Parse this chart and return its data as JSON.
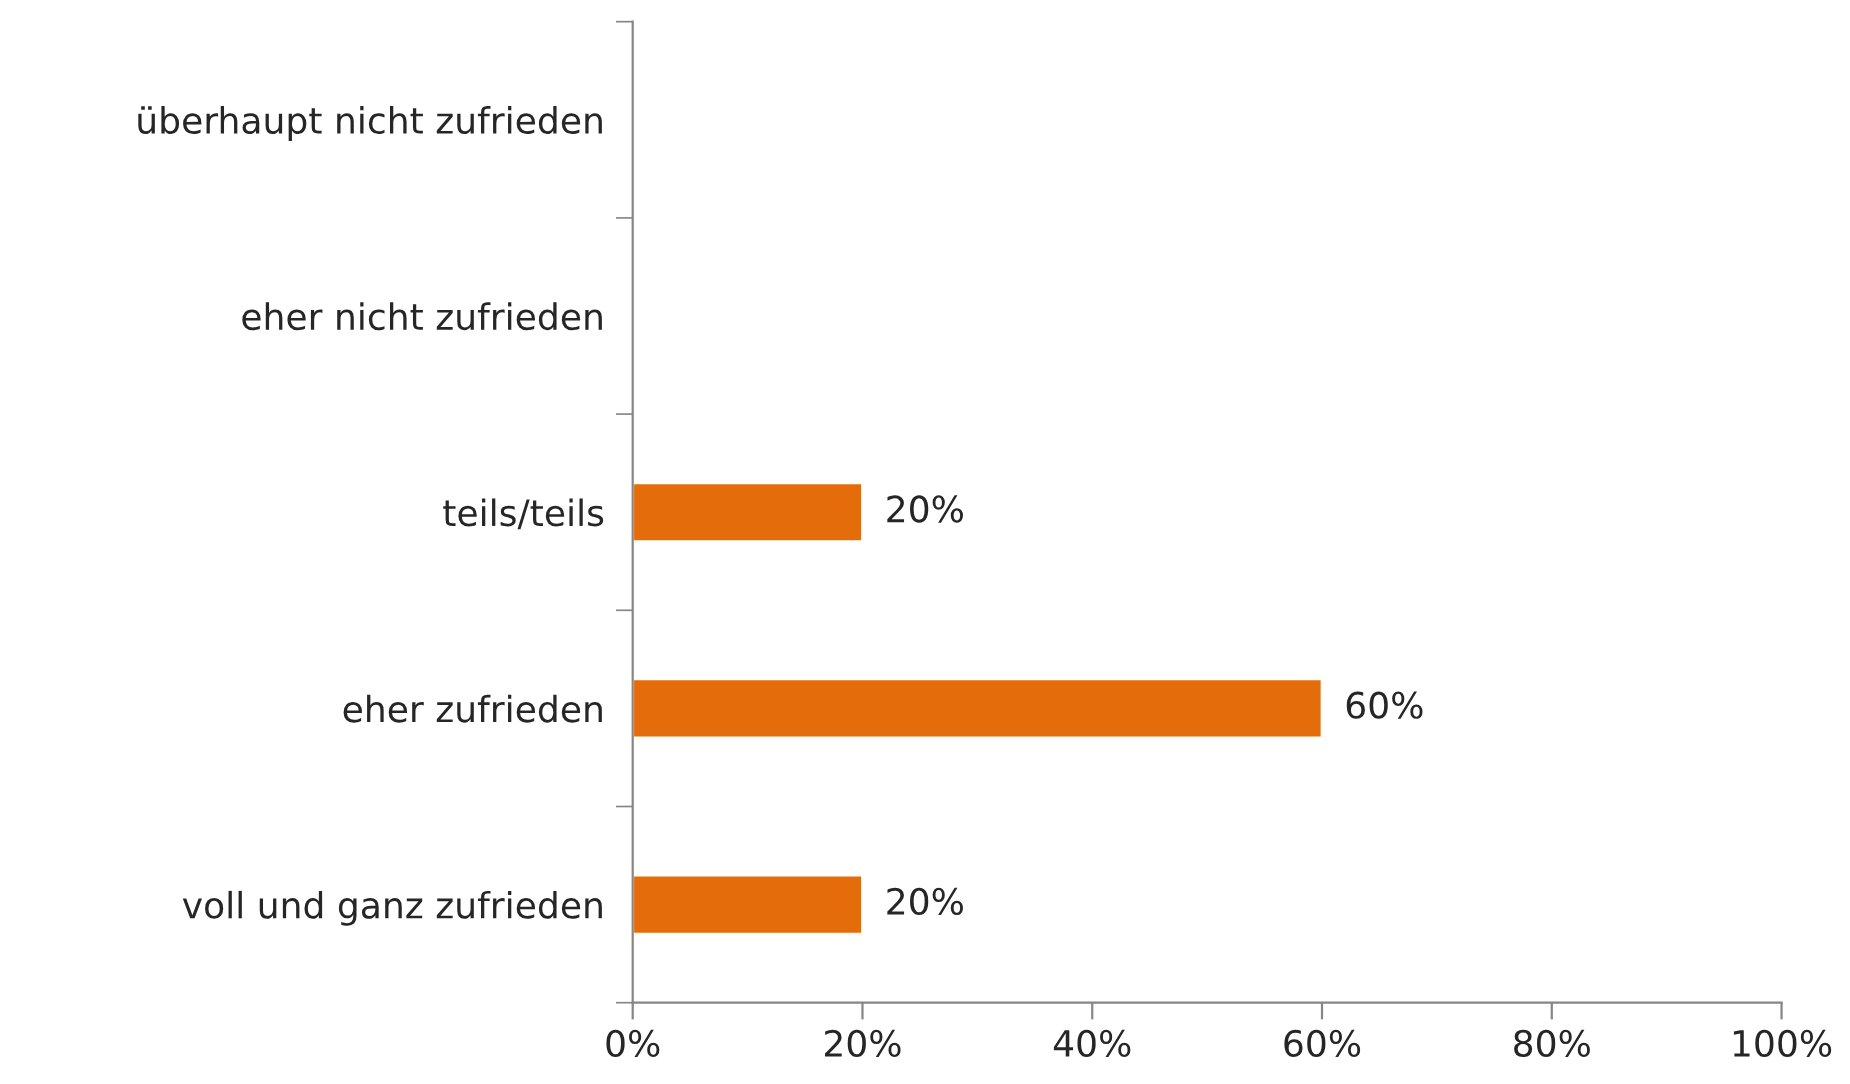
{
  "chart_data": {
    "type": "bar",
    "orientation": "horizontal",
    "categories": [
      "überhaupt nicht zufrieden",
      "eher nicht zufrieden",
      "teils/teils",
      "eher zufrieden",
      "voll und ganz zufrieden"
    ],
    "values": [
      0,
      0,
      20,
      60,
      20
    ],
    "value_labels": [
      null,
      null,
      "20%",
      "60%",
      "20%"
    ],
    "color": "#e46c0a",
    "xlim": [
      0,
      100
    ],
    "xticks": [
      {
        "value": 0,
        "label": "0%"
      },
      {
        "value": 20,
        "label": "20%"
      },
      {
        "value": 40,
        "label": "40%"
      },
      {
        "value": 60,
        "label": "60%"
      },
      {
        "value": 80,
        "label": "80%"
      },
      {
        "value": 100,
        "label": "100%"
      }
    ],
    "grid": false,
    "legend": false
  }
}
